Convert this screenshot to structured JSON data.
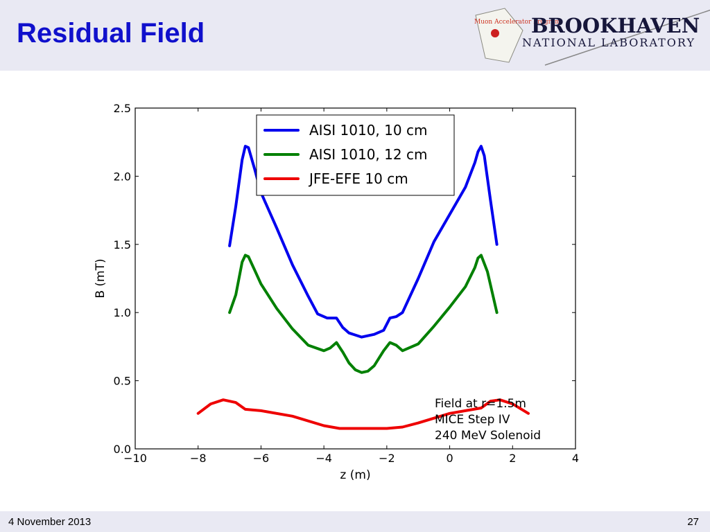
{
  "slide": {
    "title": "Residual Field",
    "logo": {
      "name": "BROOKHAVEN",
      "subtitle": "NATIONAL LABORATORY",
      "map_text": "Muon Accelerator Program"
    },
    "footer": {
      "date": "4 November 2013",
      "page": "27"
    }
  },
  "chart_data": {
    "type": "line",
    "title": "",
    "xlabel": "z (m)",
    "ylabel": "B (mT)",
    "xlim": [
      -10,
      4
    ],
    "ylim": [
      0.0,
      2.5
    ],
    "xticks": [
      -10,
      -8,
      -6,
      -4,
      -2,
      0,
      2,
      4
    ],
    "xtick_labels": [
      "−10",
      "−8",
      "−6",
      "−4",
      "−2",
      "0",
      "2",
      "4"
    ],
    "yticks": [
      0.0,
      0.5,
      1.0,
      1.5,
      2.0,
      2.5
    ],
    "ytick_labels": [
      "0.0",
      "0.5",
      "1.0",
      "1.5",
      "2.0",
      "2.5"
    ],
    "grid": false,
    "legend": {
      "placement": "top-center"
    },
    "annotation": [
      "Field at r=1.5m",
      "MICE Step IV",
      "240 MeV Solenoid"
    ],
    "series": [
      {
        "name": "AISI 1010, 10 cm",
        "color": "#0000ee",
        "x": [
          -7.0,
          -6.8,
          -6.6,
          -6.5,
          -6.4,
          -6.2,
          -6.0,
          -5.5,
          -5.0,
          -4.5,
          -4.2,
          -3.9,
          -3.6,
          -3.4,
          -3.2,
          -2.8,
          -2.4,
          -2.1,
          -1.9,
          -1.7,
          -1.5,
          -1.0,
          -0.5,
          0.0,
          0.5,
          0.8,
          0.9,
          1.0,
          1.1,
          1.3,
          1.5
        ],
        "y": [
          1.49,
          1.78,
          2.12,
          2.22,
          2.21,
          2.05,
          1.88,
          1.62,
          1.35,
          1.12,
          0.99,
          0.96,
          0.96,
          0.89,
          0.85,
          0.82,
          0.84,
          0.87,
          0.96,
          0.97,
          1.0,
          1.25,
          1.52,
          1.72,
          1.92,
          2.1,
          2.18,
          2.22,
          2.15,
          1.82,
          1.5
        ]
      },
      {
        "name": "AISI 1010, 12 cm",
        "color": "#008000",
        "x": [
          -7.0,
          -6.8,
          -6.6,
          -6.5,
          -6.4,
          -6.2,
          -6.0,
          -5.5,
          -5.0,
          -4.5,
          -4.0,
          -3.8,
          -3.6,
          -3.4,
          -3.2,
          -3.0,
          -2.8,
          -2.6,
          -2.4,
          -2.1,
          -1.9,
          -1.7,
          -1.5,
          -1.0,
          -0.5,
          0.0,
          0.5,
          0.8,
          0.9,
          1.0,
          1.2,
          1.5
        ],
        "y": [
          1.0,
          1.13,
          1.37,
          1.42,
          1.41,
          1.31,
          1.21,
          1.03,
          0.88,
          0.76,
          0.72,
          0.74,
          0.78,
          0.71,
          0.63,
          0.58,
          0.56,
          0.57,
          0.61,
          0.72,
          0.78,
          0.76,
          0.72,
          0.77,
          0.9,
          1.04,
          1.19,
          1.33,
          1.4,
          1.42,
          1.3,
          1.0
        ]
      },
      {
        "name": "JFE-EFE 10 cm",
        "color": "#ee0000",
        "x": [
          -8.0,
          -7.6,
          -7.2,
          -6.8,
          -6.5,
          -6.0,
          -5.0,
          -4.0,
          -3.5,
          -3.0,
          -2.5,
          -2.0,
          -1.5,
          -1.0,
          0.0,
          0.5,
          1.0,
          1.3,
          1.6,
          2.0,
          2.5
        ],
        "y": [
          0.26,
          0.33,
          0.36,
          0.34,
          0.29,
          0.28,
          0.24,
          0.17,
          0.15,
          0.15,
          0.15,
          0.15,
          0.16,
          0.19,
          0.26,
          0.28,
          0.3,
          0.35,
          0.36,
          0.33,
          0.26
        ]
      }
    ]
  }
}
